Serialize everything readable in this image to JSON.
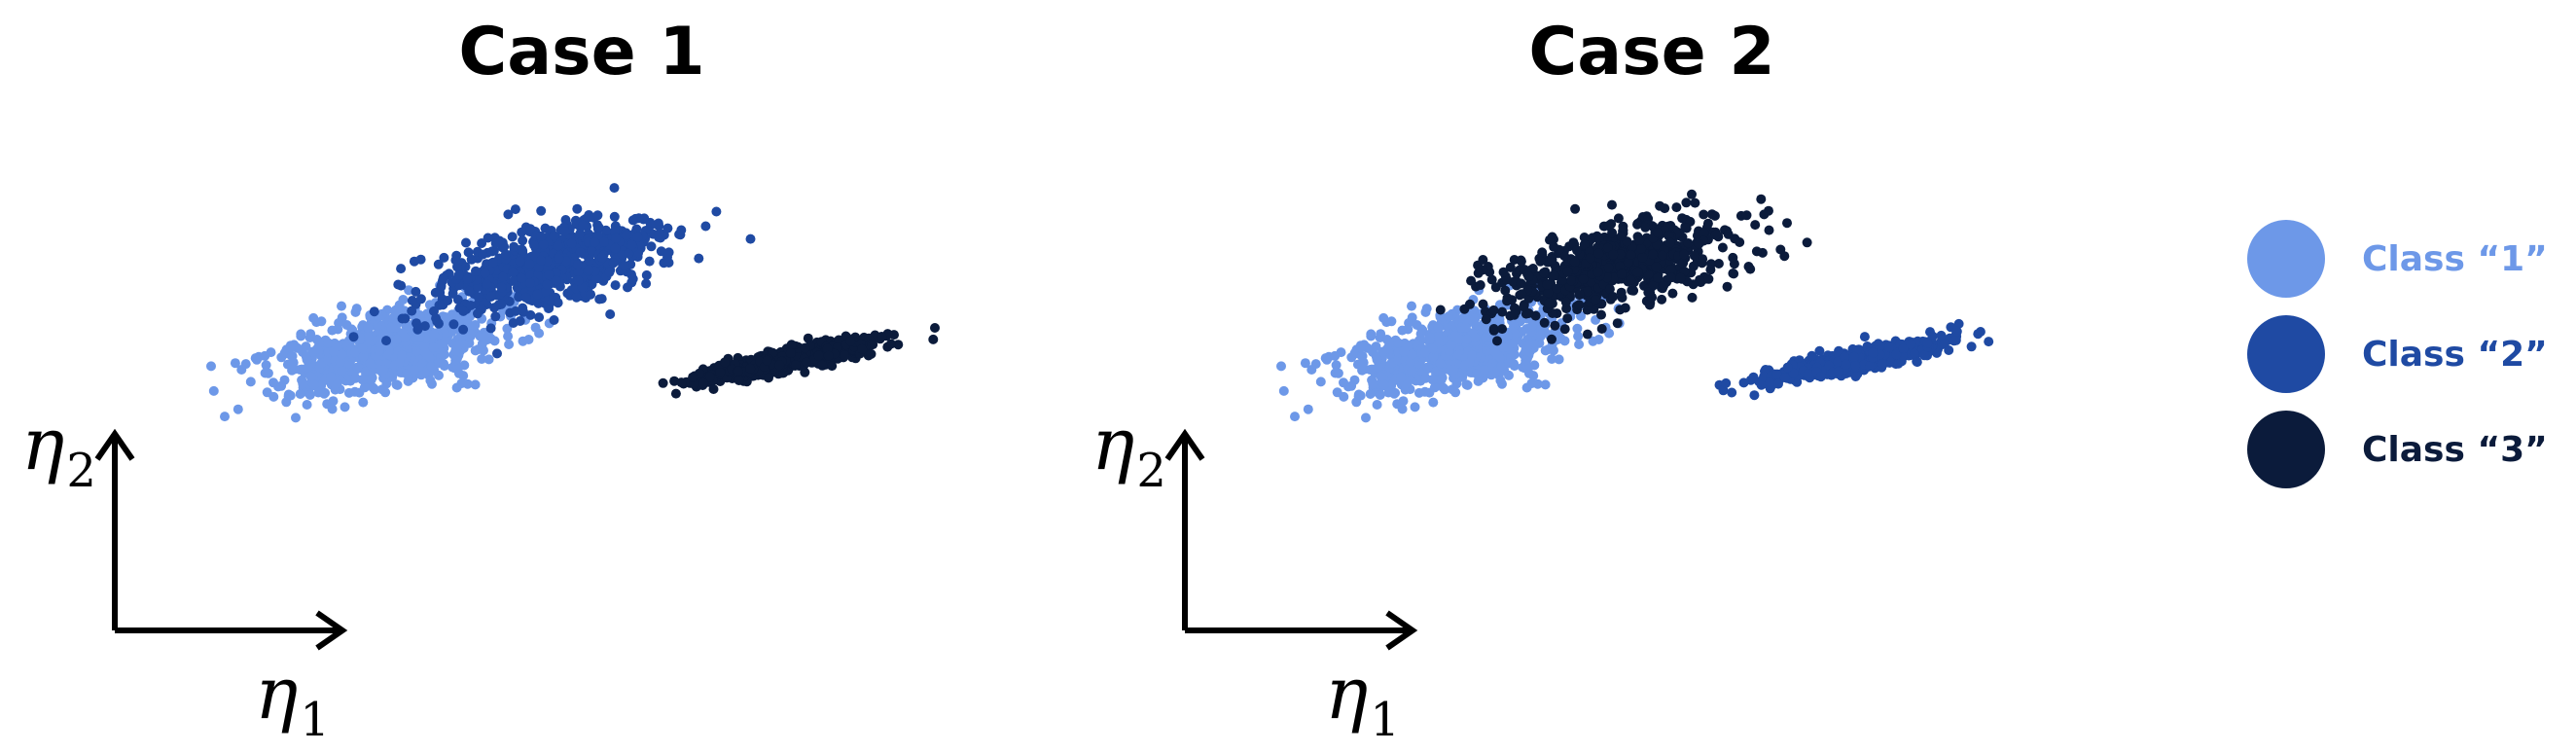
{
  "colors": {
    "class_1": "#6d98e8",
    "class_2": "#1f4aa3",
    "class_3": "#0b1b3b",
    "axis": "#000000"
  },
  "axes": {
    "x_symbol": "η",
    "x_subscript": "1",
    "y_symbol": "η",
    "y_subscript": "2"
  },
  "legend": {
    "items": [
      {
        "label": "Class “1”",
        "color": "#6d98e8"
      },
      {
        "label": "Class “2”",
        "color": "#1f4aa3"
      },
      {
        "label": "Class “3”",
        "color": "#0b1b3b"
      }
    ]
  },
  "chart_data": [
    {
      "type": "scatter",
      "title": "Case 1",
      "xlabel": "η1",
      "ylabel": "η2",
      "xlim": [
        0,
        100
      ],
      "ylim": [
        0,
        100
      ],
      "legend_position": "right",
      "series": [
        {
          "name": "Class “1”",
          "color": "#6d98e8",
          "center": [
            30,
            46
          ],
          "spread": [
            6.5,
            5.5
          ],
          "correlation": 0.55,
          "n": 700
        },
        {
          "name": "Class “2”",
          "color": "#1f4aa3",
          "center": [
            47,
            65
          ],
          "spread": [
            6.5,
            5.5
          ],
          "correlation": 0.55,
          "n": 700
        },
        {
          "name": "Class “3”",
          "color": "#0b1b3b",
          "center": [
            73,
            43
          ],
          "spread": [
            4.8,
            2.4
          ],
          "correlation": 0.85,
          "n": 700
        }
      ]
    },
    {
      "type": "scatter",
      "title": "Case 2",
      "xlabel": "η1",
      "ylabel": "η2",
      "xlim": [
        0,
        100
      ],
      "ylim": [
        0,
        100
      ],
      "legend_position": "right",
      "series": [
        {
          "name": "Class “1”",
          "color": "#6d98e8",
          "center": [
            30,
            46
          ],
          "spread": [
            6.5,
            5.5
          ],
          "correlation": 0.55,
          "n": 700
        },
        {
          "name": "Class “2”",
          "color": "#1f4aa3",
          "center": [
            73,
            43
          ],
          "spread": [
            4.8,
            2.4
          ],
          "correlation": 0.85,
          "n": 700
        },
        {
          "name": "Class “3”",
          "color": "#0b1b3b",
          "center": [
            47,
            65
          ],
          "spread": [
            6.5,
            5.5
          ],
          "correlation": 0.55,
          "n": 700
        }
      ]
    }
  ]
}
